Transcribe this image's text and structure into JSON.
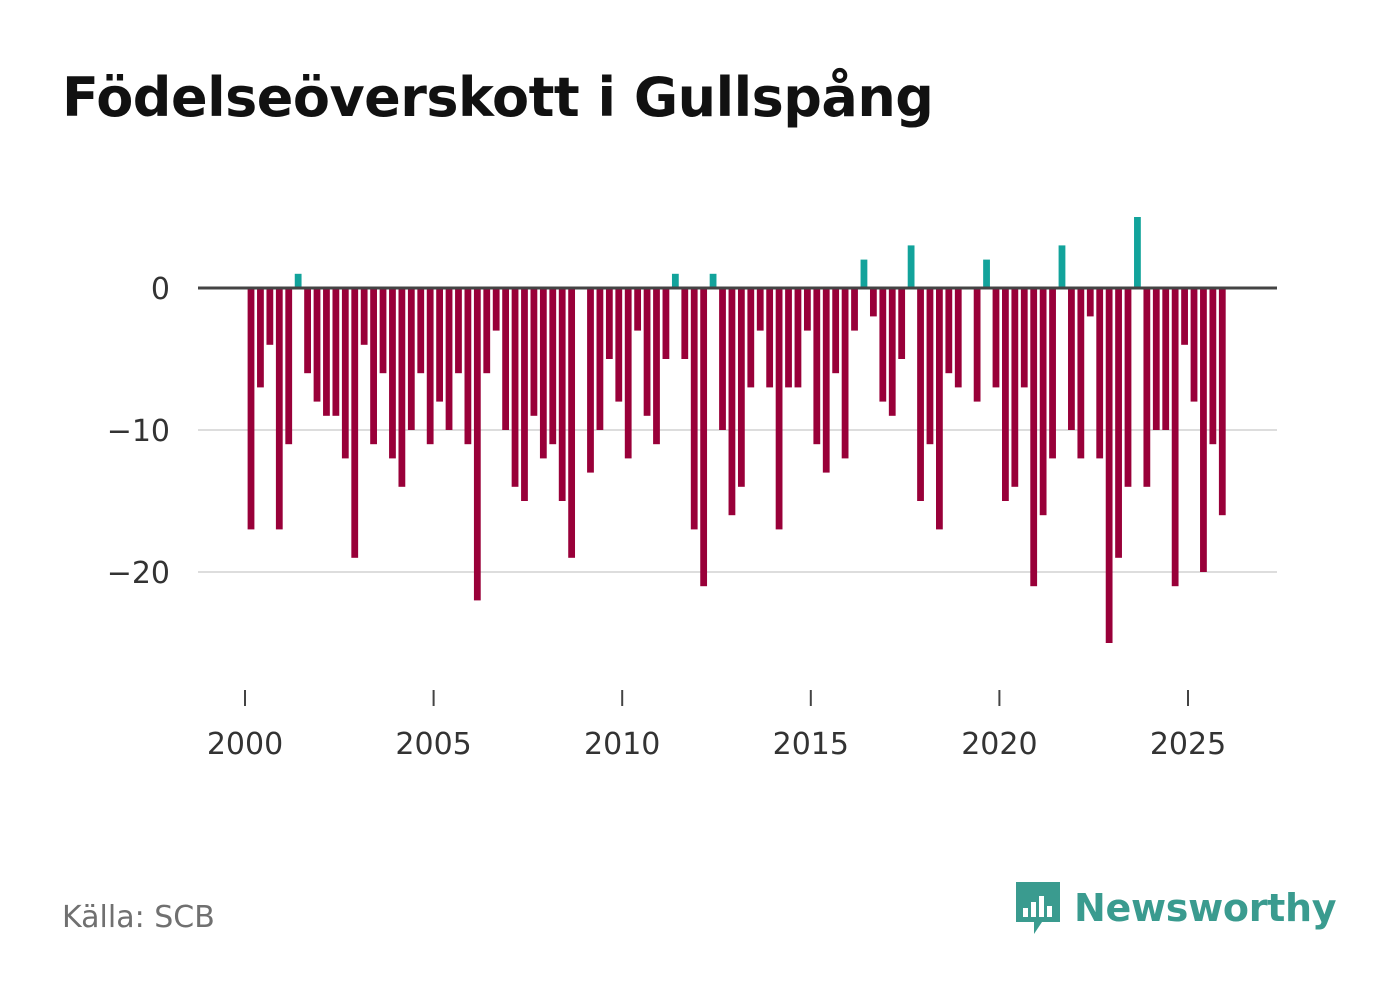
{
  "title": "Födelseöverskott i Gullspång",
  "source": "Källa: SCB",
  "logo": {
    "text": "Newsworthy",
    "icon": "chart-speech-bubble-icon"
  },
  "colors": {
    "positive": "#12a39b",
    "negative": "#990039",
    "axis": "#444444",
    "grid": "#dddddd",
    "brand": "#3a9b8f"
  },
  "chart_data": {
    "type": "bar",
    "title": "Födelseöverskott i Gullspång",
    "xlabel": "",
    "ylabel": "",
    "x_ticks": [
      "2000",
      "2005",
      "2010",
      "2015",
      "2020",
      "2025"
    ],
    "y_ticks": [
      {
        "value": 0,
        "label": "0"
      },
      {
        "value": -10,
        "label": "−10"
      },
      {
        "value": -20,
        "label": "−20"
      }
    ],
    "ylim": [
      -28,
      6
    ],
    "xlim": [
      1998.5,
      2027.3
    ],
    "period": "quarterly",
    "start": 2000.0,
    "step": 0.25,
    "values": [
      -17,
      -7,
      -4,
      -17,
      -11,
      1,
      -6,
      -8,
      -9,
      -9,
      -12,
      -19,
      -4,
      -11,
      -6,
      -12,
      -14,
      -10,
      -6,
      -11,
      -8,
      -10,
      -6,
      -11,
      -22,
      -6,
      -3,
      -10,
      -14,
      -15,
      -9,
      -12,
      -11,
      -15,
      -19,
      0,
      -13,
      -10,
      -5,
      -8,
      -12,
      -3,
      -9,
      -11,
      -5,
      1,
      -5,
      -17,
      -21,
      1,
      -10,
      -16,
      -14,
      -7,
      -3,
      -7,
      -17,
      -7,
      -7,
      -3,
      -11,
      -13,
      -6,
      -12,
      -3,
      2,
      -2,
      -8,
      -9,
      -5,
      3,
      -15,
      -11,
      -17,
      -6,
      -7,
      0,
      -8,
      2,
      -7,
      -15,
      -14,
      -7,
      -21,
      -16,
      -12,
      3,
      -10,
      -12,
      -2,
      -12,
      -25,
      -19,
      -14,
      5,
      -14,
      -10,
      -10,
      -21,
      -4,
      -8,
      -20,
      -11,
      -16
    ]
  }
}
